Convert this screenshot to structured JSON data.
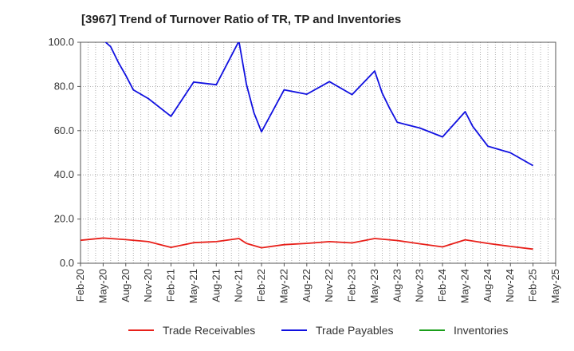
{
  "chart_data": {
    "type": "line",
    "title": "[3967]  Trend of Turnover Ratio of TR, TP and Inventories",
    "xlabel": "",
    "ylabel": "",
    "ylim": [
      0,
      100
    ],
    "yticks": [
      "0.0",
      "20.0",
      "40.0",
      "60.0",
      "80.0",
      "100.0"
    ],
    "xlim": [
      "2020-02",
      "2025-05"
    ],
    "xticks": [
      "Feb-20",
      "May-20",
      "Aug-20",
      "Nov-20",
      "Feb-21",
      "May-21",
      "Aug-21",
      "Nov-21",
      "Feb-22",
      "May-22",
      "Aug-22",
      "Nov-22",
      "Feb-23",
      "May-23",
      "Aug-23",
      "Nov-23",
      "Feb-24",
      "May-24",
      "Aug-24",
      "Nov-24",
      "Feb-25",
      "May-25"
    ],
    "grid": "dotted",
    "legend_position": "bottom",
    "series": [
      {
        "name": "Trade Receivables",
        "color": "#e8201a",
        "points": [
          [
            "2020-02",
            10.4
          ],
          [
            "2020-05",
            11.4
          ],
          [
            "2020-08",
            10.7
          ],
          [
            "2020-11",
            9.8
          ],
          [
            "2021-01",
            8.0
          ],
          [
            "2021-02",
            7.2
          ],
          [
            "2021-05",
            9.3
          ],
          [
            "2021-08",
            9.8
          ],
          [
            "2021-11",
            11.2
          ],
          [
            "2021-12",
            9.0
          ],
          [
            "2022-02",
            7.0
          ],
          [
            "2022-05",
            8.4
          ],
          [
            "2022-08",
            9.0
          ],
          [
            "2022-11",
            9.8
          ],
          [
            "2023-02",
            9.2
          ],
          [
            "2023-05",
            11.2
          ],
          [
            "2023-08",
            10.3
          ],
          [
            "2023-11",
            8.8
          ],
          [
            "2024-02",
            7.4
          ],
          [
            "2024-05",
            10.6
          ],
          [
            "2024-08",
            9.0
          ],
          [
            "2024-11",
            7.6
          ],
          [
            "2025-02",
            6.4
          ]
        ]
      },
      {
        "name": "Trade Payables",
        "color": "#1010e0",
        "points": [
          [
            "2020-02",
            108.0
          ],
          [
            "2020-05",
            101.0
          ],
          [
            "2020-06",
            98.0
          ],
          [
            "2020-07",
            91.0
          ],
          [
            "2020-08",
            85.0
          ],
          [
            "2020-09",
            78.5
          ],
          [
            "2020-11",
            74.5
          ],
          [
            "2021-02",
            66.5
          ],
          [
            "2021-05",
            82.0
          ],
          [
            "2021-08",
            80.8
          ],
          [
            "2021-11",
            100.5
          ],
          [
            "2021-12",
            81.0
          ],
          [
            "2022-01",
            68.0
          ],
          [
            "2022-02",
            59.5
          ],
          [
            "2022-05",
            78.5
          ],
          [
            "2022-08",
            76.5
          ],
          [
            "2022-11",
            82.2
          ],
          [
            "2023-02",
            76.3
          ],
          [
            "2023-05",
            87.0
          ],
          [
            "2023-06",
            77.0
          ],
          [
            "2023-07",
            70.0
          ],
          [
            "2023-08",
            63.8
          ],
          [
            "2023-11",
            61.2
          ],
          [
            "2024-02",
            57.2
          ],
          [
            "2024-05",
            68.6
          ],
          [
            "2024-06",
            62.0
          ],
          [
            "2024-08",
            53.0
          ],
          [
            "2024-11",
            50.0
          ],
          [
            "2025-02",
            44.2
          ]
        ]
      },
      {
        "name": "Inventories",
        "color": "#1a9e1a",
        "points": []
      }
    ]
  }
}
